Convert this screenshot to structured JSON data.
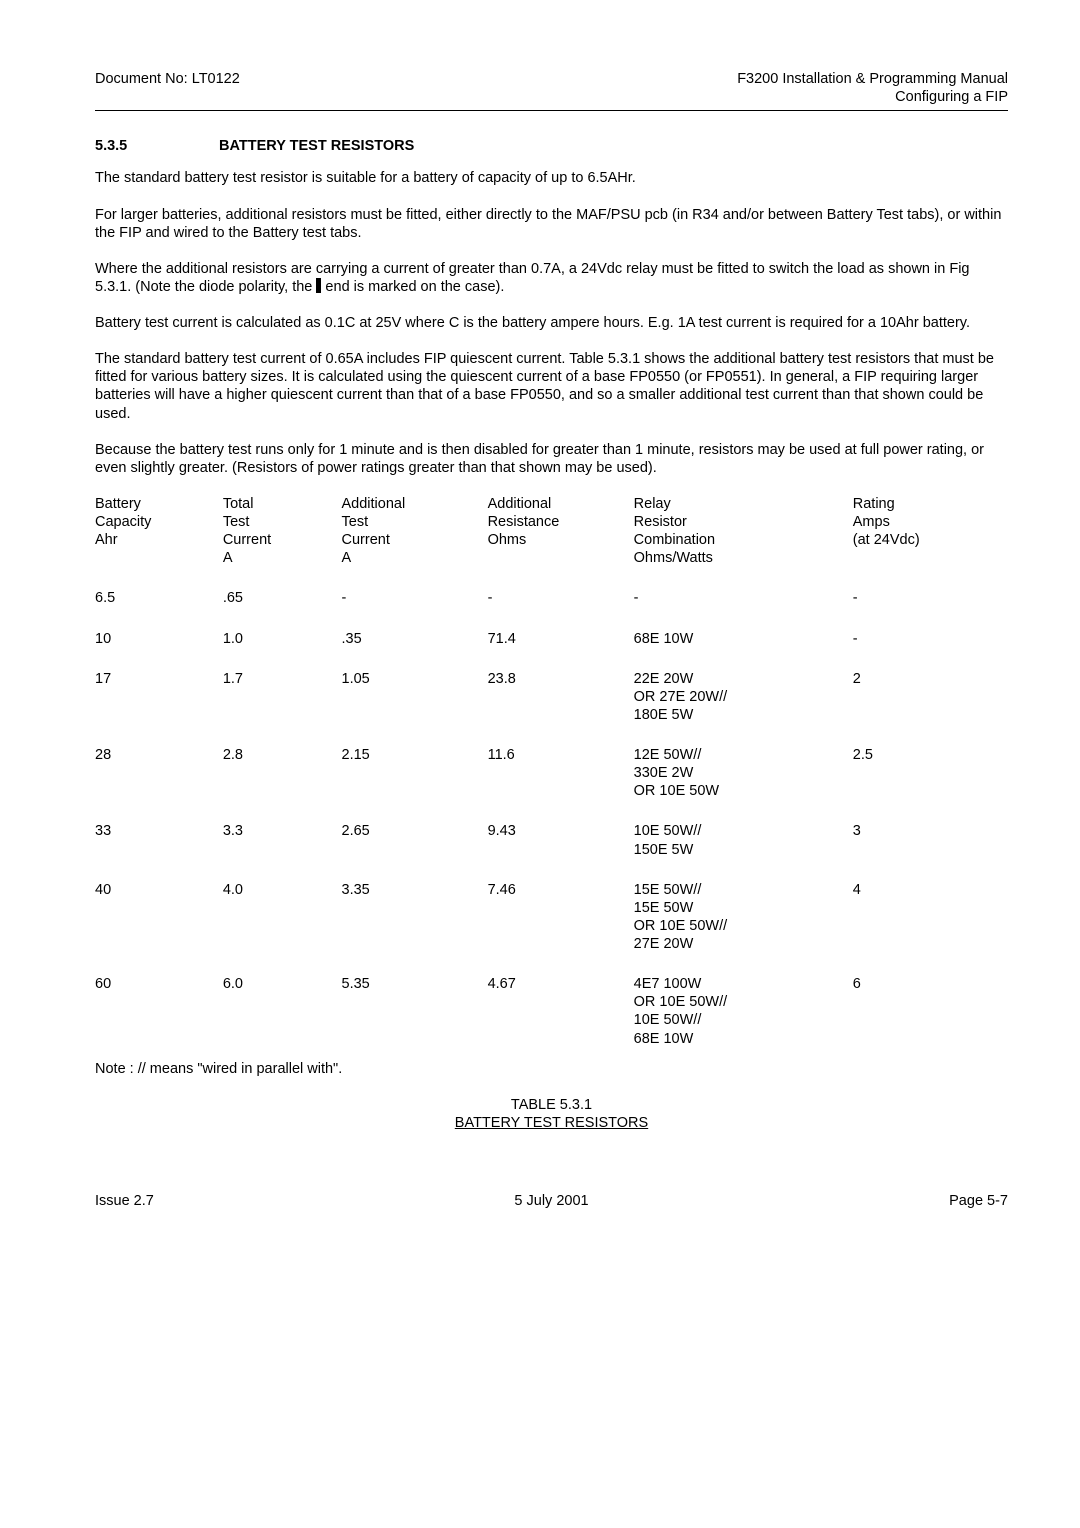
{
  "header": {
    "doc_left": "Document No: LT0122",
    "doc_right_line1": "F3200 Installation & Programming Manual",
    "doc_right_line2": "Configuring a FIP"
  },
  "section": {
    "number": "5.3.5",
    "title": "BATTERY TEST RESISTORS"
  },
  "paragraphs": {
    "p1": "The standard battery test resistor is suitable for a battery of capacity of up to 6.5AHr.",
    "p2": "For larger batteries, additional resistors must be fitted, either directly to the MAF/PSU pcb (in R34 and/or between Battery Test tabs), or within the FIP and wired to the Battery test tabs.",
    "p3a": "Where the additional resistors are carrying a current of greater than 0.7A, a 24Vdc relay must be fitted to switch the load as shown in Fig 5.3.1.  (Note the diode polarity, the ",
    "p3b": " end is marked on the case).",
    "p4": "Battery test current is calculated as 0.1C at 25V where C is the battery ampere hours.  E.g. 1A test current is required for a 10Ahr battery.",
    "p5": "The standard battery test current of 0.65A includes FIP quiescent current.  Table 5.3.1 shows the additional battery test resistors that must be fitted for various battery sizes.  It is calculated using the quiescent current of a base FP0550 (or FP0551).  In general, a FIP requiring larger batteries will have a higher quiescent current than that of a base FP0550, and so a smaller additional test current than that shown could be used.",
    "p6": "Because the battery test runs only for 1 minute and is then disabled for greater than 1 minute, resistors may be used at full power rating, or even slightly greater.  (Resistors of power ratings greater than that shown may be used)."
  },
  "table": {
    "columns": [
      "Battery\nCapacity\nAhr",
      "Total\nTest\nCurrent\nA",
      "Additional\nTest\nCurrent\nA",
      "Additional\nResistance\nOhms",
      "Relay\nResistor\nCombination\nOhms/Watts",
      "Rating\nAmps\n(at 24Vdc)"
    ],
    "col_widths": [
      "14%",
      "13%",
      "16%",
      "16%",
      "24%",
      "17%"
    ],
    "rows": [
      [
        "6.5",
        ".65",
        "-",
        "-",
        "-",
        "-"
      ],
      [
        "10",
        "1.0",
        ".35",
        "71.4",
        "68E 10W",
        "-"
      ],
      [
        "17",
        "1.7",
        "1.05",
        "23.8",
        "22E 20W\nOR 27E 20W//\n180E 5W",
        "2"
      ],
      [
        "28",
        "2.8",
        "2.15",
        "11.6",
        "12E 50W//\n330E 2W\nOR 10E 50W",
        "2.5"
      ],
      [
        "33",
        "3.3",
        "2.65",
        "9.43",
        "10E 50W//\n150E 5W",
        "3"
      ],
      [
        "40",
        "4.0",
        "3.35",
        "7.46",
        "15E 50W//\n15E 50W\nOR 10E 50W//\n27E 20W",
        "4"
      ],
      [
        "60",
        "6.0",
        "5.35",
        "4.67",
        "4E7 100W\nOR 10E 50W//\n10E 50W//\n68E 10W",
        "6"
      ]
    ]
  },
  "note": "Note : // means \"wired in parallel with\".",
  "caption": {
    "line1": "TABLE 5.3.1",
    "line2": "BATTERY TEST RESISTORS"
  },
  "footer": {
    "left": "Issue 2.7",
    "center": "5 July 2001",
    "right": "Page 5-7"
  }
}
